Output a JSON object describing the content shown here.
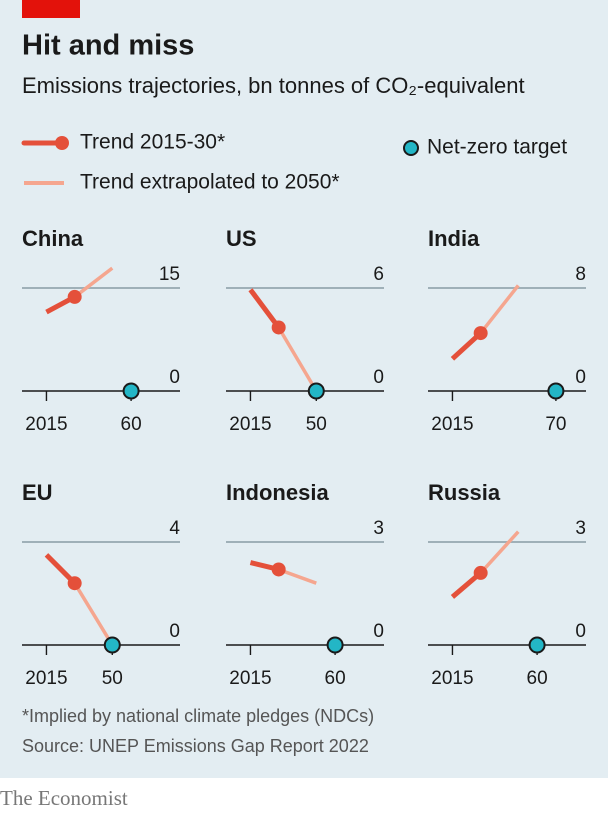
{
  "title": "Hit and miss",
  "subtitle": "Emissions trajectories, bn tonnes of CO₂-equivalent",
  "legend": [
    {
      "name": "Trend 2015-30*",
      "color": "#e4503a"
    },
    {
      "name": "Trend extrapolated to 2050*",
      "color": "#f5a68f"
    },
    {
      "name": "Net-zero target",
      "color": "#23b6c6"
    }
  ],
  "chart_data": [
    {
      "type": "line",
      "title": "China",
      "x": [
        2015,
        2030,
        2050
      ],
      "series": [
        {
          "values": [
            11.5,
            13.7,
            null
          ]
        },
        {
          "values": [
            null,
            13.7,
            17.9
          ]
        }
      ],
      "net_zero": {
        "x": 2060,
        "value": 0
      },
      "xlim": [
        2002,
        2086
      ],
      "ylim": [
        0,
        15
      ],
      "xticks": [
        2015,
        {
          "value": 2060,
          "label": "60"
        }
      ],
      "yticks": [
        0,
        15
      ]
    },
    {
      "type": "line",
      "title": "US",
      "x": [
        2015,
        2030,
        2050
      ],
      "series": [
        {
          "values": [
            5.9,
            3.7,
            null
          ]
        },
        {
          "values": [
            null,
            3.7,
            0
          ]
        }
      ],
      "net_zero": {
        "x": 2050,
        "value": 0
      },
      "xlim": [
        2002,
        2086
      ],
      "ylim": [
        0,
        6
      ],
      "xticks": [
        2015,
        {
          "value": 2050,
          "label": "50"
        }
      ],
      "yticks": [
        0,
        6
      ]
    },
    {
      "type": "line",
      "title": "India",
      "x": [
        2015,
        2030,
        2050
      ],
      "series": [
        {
          "values": [
            2.5,
            4.5,
            null
          ]
        },
        {
          "values": [
            null,
            4.5,
            8.2
          ]
        }
      ],
      "net_zero": {
        "x": 2070,
        "value": 0
      },
      "xlim": [
        2002,
        2086
      ],
      "ylim": [
        0,
        8
      ],
      "xticks": [
        2015,
        {
          "value": 2070,
          "label": "70"
        }
      ],
      "yticks": [
        0,
        8
      ]
    },
    {
      "type": "line",
      "title": "EU",
      "x": [
        2015,
        2030,
        2050
      ],
      "series": [
        {
          "values": [
            3.5,
            2.4,
            null
          ]
        },
        {
          "values": [
            null,
            2.4,
            0
          ]
        }
      ],
      "net_zero": {
        "x": 2050,
        "value": 0
      },
      "xlim": [
        2002,
        2086
      ],
      "ylim": [
        0,
        4
      ],
      "xticks": [
        2015,
        {
          "value": 2050,
          "label": "50"
        }
      ],
      "yticks": [
        0,
        4
      ]
    },
    {
      "type": "line",
      "title": "Indonesia",
      "x": [
        2015,
        2030,
        2050
      ],
      "series": [
        {
          "values": [
            2.4,
            2.2,
            null
          ]
        },
        {
          "values": [
            null,
            2.2,
            1.8
          ]
        }
      ],
      "net_zero": {
        "x": 2060,
        "value": 0
      },
      "xlim": [
        2002,
        2086
      ],
      "ylim": [
        0,
        3
      ],
      "xticks": [
        2015,
        {
          "value": 2060,
          "label": "60"
        }
      ],
      "yticks": [
        0,
        3
      ]
    },
    {
      "type": "line",
      "title": "Russia",
      "x": [
        2015,
        2030,
        2050
      ],
      "series": [
        {
          "values": [
            1.4,
            2.1,
            null
          ]
        },
        {
          "values": [
            null,
            2.1,
            3.3
          ]
        }
      ],
      "net_zero": {
        "x": 2060,
        "value": 0
      },
      "xlim": [
        2002,
        2086
      ],
      "ylim": [
        0,
        3
      ],
      "xticks": [
        2015,
        {
          "value": 2060,
          "label": "60"
        }
      ],
      "yticks": [
        0,
        3
      ]
    }
  ],
  "footnote": "*Implied by national climate pledges (NDCs)",
  "source": "Source: UNEP Emissions Gap Report 2022",
  "brand": "The Economist"
}
